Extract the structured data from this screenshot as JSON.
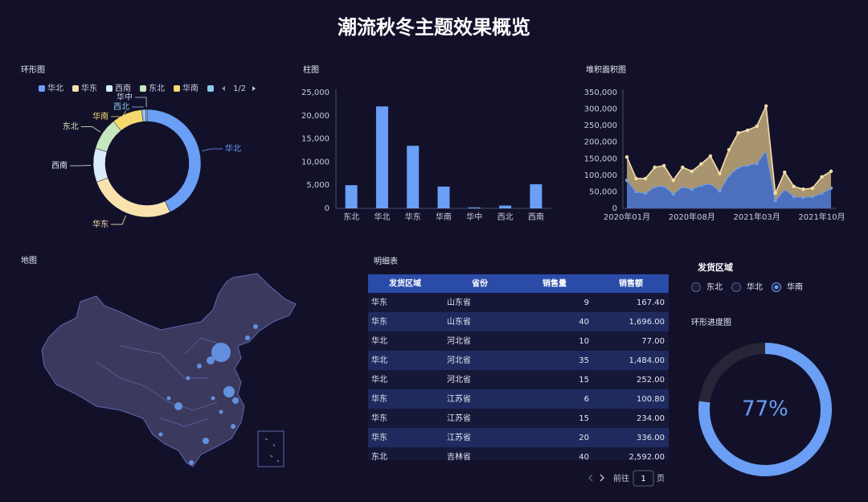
{
  "title": "潮流秋冬主题效果概览",
  "chart_data": [
    {
      "type": "donut",
      "title": "环形图",
      "categories": [
        "华北",
        "华东",
        "西南",
        "东北",
        "华南",
        "西北",
        "华中"
      ],
      "values": [
        22000,
        13500,
        5200,
        5000,
        4700,
        600,
        200
      ],
      "colors": [
        "#6a9ff5",
        "#f9e2ad",
        "#dbecfa",
        "#c6e6c0",
        "#f5d96c",
        "#8cc8f0",
        "#c9d4ee"
      ],
      "legend_pager": "1/2"
    },
    {
      "type": "bar",
      "title": "柱图",
      "categories": [
        "东北",
        "华北",
        "华东",
        "华南",
        "华中",
        "西北",
        "西南"
      ],
      "values": [
        5000,
        22000,
        13500,
        4700,
        200,
        600,
        5200
      ],
      "color": "#6a9ff5",
      "grid": false,
      "ylim": [
        0,
        25000
      ],
      "yticks": [
        0,
        {
          "value": 5000,
          "label": "5,000"
        },
        {
          "value": 10000,
          "label": "10,000"
        },
        {
          "value": 15000,
          "label": "15,000"
        },
        {
          "value": 20000,
          "label": "20,000"
        },
        {
          "value": 25000,
          "label": "25,000"
        }
      ]
    },
    {
      "type": "area",
      "title": "堆积面积图",
      "stacked": true,
      "grid": false,
      "categories": [
        "2020年01月",
        null,
        null,
        null,
        null,
        null,
        null,
        "2020年08月",
        null,
        null,
        null,
        null,
        null,
        null,
        "2021年03月",
        null,
        null,
        null,
        null,
        null,
        null,
        "2021年10月",
        null
      ],
      "series": [
        {
          "color": "#6a9ff5",
          "fill": "#4c70bd",
          "values": [
            85000,
            51000,
            46000,
            66000,
            68000,
            44000,
            66000,
            58000,
            70000,
            75000,
            53000,
            100000,
            124000,
            131000,
            136000,
            175000,
            24000,
            58000,
            36000,
            34000,
            36000,
            46000,
            61000
          ]
        },
        {
          "color": "#f3deaa",
          "fill": "#a8946f",
          "values": [
            70000,
            39000,
            44000,
            58000,
            61000,
            41000,
            58000,
            54000,
            64000,
            83000,
            52000,
            77000,
            104000,
            105000,
            112000,
            134000,
            22000,
            51000,
            30000,
            24000,
            25000,
            49000,
            51000
          ]
        }
      ],
      "ylim": [
        0,
        350000
      ],
      "yticks": [
        0,
        {
          "value": 50000,
          "label": "50,000"
        },
        {
          "value": 100000,
          "label": "100,000"
        },
        {
          "value": 150000,
          "label": "150,000"
        },
        {
          "value": 200000,
          "label": "200,000"
        },
        {
          "value": 250000,
          "label": "250,000"
        },
        {
          "value": 300000,
          "label": "300,000"
        },
        {
          "value": 350000,
          "label": "350,000"
        }
      ]
    },
    {
      "type": "gauge",
      "title": "环形进度图",
      "values": [
        77
      ],
      "value_labels": [
        "77%"
      ],
      "ylim": [
        0,
        100
      ],
      "color": "#6a9ff5"
    }
  ],
  "map": {
    "title": "地图"
  },
  "table": {
    "title": "明细表",
    "columns": [
      "发货区域",
      "省份",
      "销售量",
      "销售额"
    ],
    "rows": [
      [
        "华东",
        "山东省",
        "9",
        "167.40"
      ],
      [
        "华东",
        "山东省",
        "40",
        "1,696.00"
      ],
      [
        "华北",
        "河北省",
        "10",
        "77.00"
      ],
      [
        "华北",
        "河北省",
        "35",
        "1,484.00"
      ],
      [
        "华北",
        "河北省",
        "15",
        "252.00"
      ],
      [
        "华东",
        "江苏省",
        "6",
        "100.80"
      ],
      [
        "华东",
        "江苏省",
        "15",
        "234.00"
      ],
      [
        "华东",
        "江苏省",
        "20",
        "336.00"
      ],
      [
        "东北",
        "吉林省",
        "40",
        "2,592.00"
      ]
    ]
  },
  "pagination": {
    "prefix": "前往",
    "page": 1,
    "suffix": "页"
  },
  "filter": {
    "title": "发货区域",
    "options": [
      "东北",
      "华北",
      "华南"
    ],
    "selected": 2
  }
}
